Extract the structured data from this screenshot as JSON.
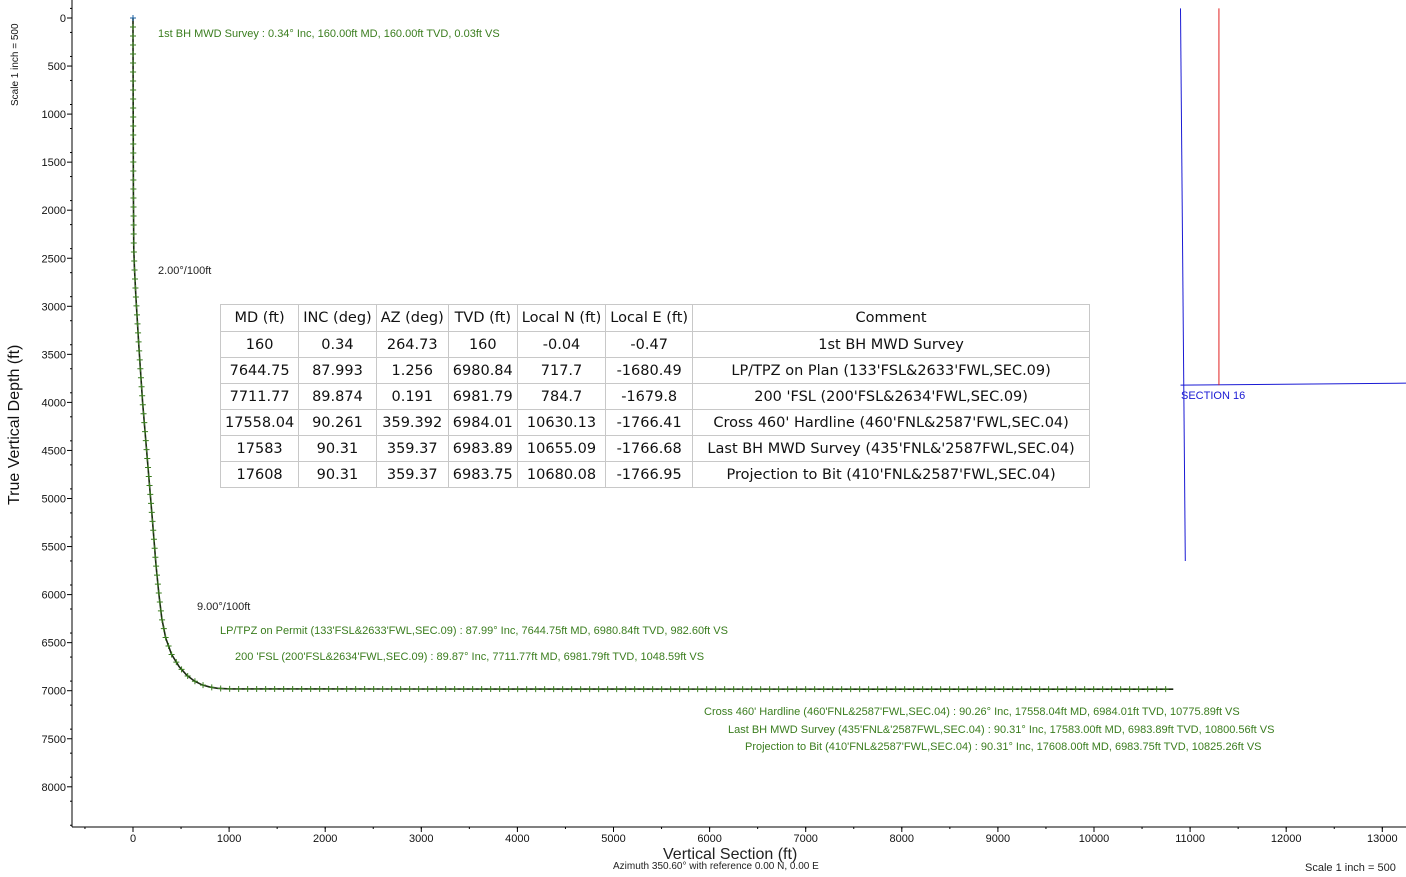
{
  "chart_data": {
    "type": "line",
    "xlabel": "Vertical Section (ft)",
    "xsublabel": "Azimuth 350.60° with reference 0.00 N, 0.00 E",
    "ylabel": "True Vertical Depth (ft)",
    "scale_left": "Scale 1 inch = 500",
    "scale_bottom": "Scale 1 inch = 500",
    "xlim": [
      -650,
      13250
    ],
    "ylim": [
      8450,
      -100
    ],
    "xticks": [
      0,
      1000,
      2000,
      3000,
      4000,
      5000,
      6000,
      7000,
      8000,
      9000,
      10000,
      11000,
      12000,
      13000
    ],
    "yticks": [
      0,
      500,
      1000,
      1500,
      2000,
      2500,
      3000,
      3500,
      4000,
      4500,
      5000,
      5500,
      6000,
      6500,
      7000,
      7500,
      8000
    ],
    "wellbore_path": {
      "color": "#3a7d1e",
      "x": [
        0,
        0,
        2,
        4,
        8,
        15,
        30,
        60,
        100,
        150,
        200,
        240,
        270,
        300,
        340,
        400,
        480,
        560,
        640,
        720,
        800,
        880,
        983,
        1049,
        2000,
        4000,
        6000,
        8000,
        10000,
        10776,
        10801,
        10825
      ],
      "y": [
        0,
        160,
        1000,
        1800,
        2400,
        2600,
        2900,
        3400,
        4000,
        4600,
        5200,
        5700,
        6000,
        6250,
        6450,
        6620,
        6750,
        6840,
        6900,
        6940,
        6962,
        6975,
        6980.84,
        6981.79,
        6982,
        6983,
        6983.5,
        6983.8,
        6984,
        6984.01,
        6983.89,
        6983.75
      ]
    },
    "section_lines": {
      "blue_vertical": {
        "color": "#1a1ad4",
        "x": [
          10900,
          10950
        ],
        "y": [
          -100,
          5650
        ]
      },
      "blue_horizontal": {
        "color": "#1a1ad4",
        "x": [
          10900,
          13250
        ],
        "y": [
          3820,
          3800
        ]
      },
      "red_vertical": {
        "color": "#e02020",
        "x": [
          11300,
          11300
        ],
        "y": [
          -100,
          3820
        ]
      },
      "section_label": "SECTION 16"
    },
    "annotations": {
      "first_survey": "1st BH MWD Survey : 0.34° Inc, 160.00ft MD, 160.00ft TVD, 0.03ft VS",
      "dls_1": "2.00°/100ft",
      "dls_2": "9.00°/100ft",
      "lp_tpz": "LP/TPZ on Permit (133'FSL&2633'FWL,SEC.09) : 87.99° Inc, 7644.75ft MD, 6980.84ft TVD, 982.60ft VS",
      "fsl_200": "200 'FSL (200'FSL&2634'FWL,SEC.09) : 89.87° Inc, 7711.77ft MD, 6981.79ft TVD, 1048.59ft VS",
      "cross_460": "Cross 460' Hardline (460'FNL&2587'FWL,SEC.04) : 90.26° Inc, 17558.04ft MD, 6984.01ft TVD, 10775.89ft VS",
      "last_survey": "Last BH MWD Survey (435'FNL&'2587FWL,SEC.04) : 90.31° Inc, 17583.00ft MD, 6983.89ft TVD, 10800.56ft VS",
      "projection": "Projection to Bit (410'FNL&2587'FWL,SEC.04) : 90.31° Inc, 17608.00ft MD, 6983.75ft TVD, 10825.26ft VS"
    },
    "table": {
      "columns": [
        "MD (ft)",
        "INC (deg)",
        "AZ (deg)",
        "TVD (ft)",
        "Local N (ft)",
        "Local E (ft)",
        "Comment"
      ],
      "rows": [
        [
          "160",
          "0.34",
          "264.73",
          "160",
          "-0.04",
          "-0.47",
          "1st BH MWD Survey"
        ],
        [
          "7644.75",
          "87.993",
          "1.256",
          "6980.84",
          "717.7",
          "-1680.49",
          "LP/TPZ on Plan (133'FSL&2633'FWL,SEC.09)"
        ],
        [
          "7711.77",
          "89.874",
          "0.191",
          "6981.79",
          "784.7",
          "-1679.8",
          "200 'FSL (200'FSL&2634'FWL,SEC.09)"
        ],
        [
          "17558.04",
          "90.261",
          "359.392",
          "6984.01",
          "10630.13",
          "-1766.41",
          "Cross 460' Hardline (460'FNL&2587'FWL,SEC.04)"
        ],
        [
          "17583",
          "90.31",
          "359.37",
          "6983.89",
          "10655.09",
          "-1766.68",
          "Last BH MWD Survey (435'FNL&'2587FWL,SEC.04)"
        ],
        [
          "17608",
          "90.31",
          "359.37",
          "6983.75",
          "10680.08",
          "-1766.95",
          "Projection to Bit (410'FNL&2587'FWL,SEC.04)"
        ]
      ]
    }
  }
}
